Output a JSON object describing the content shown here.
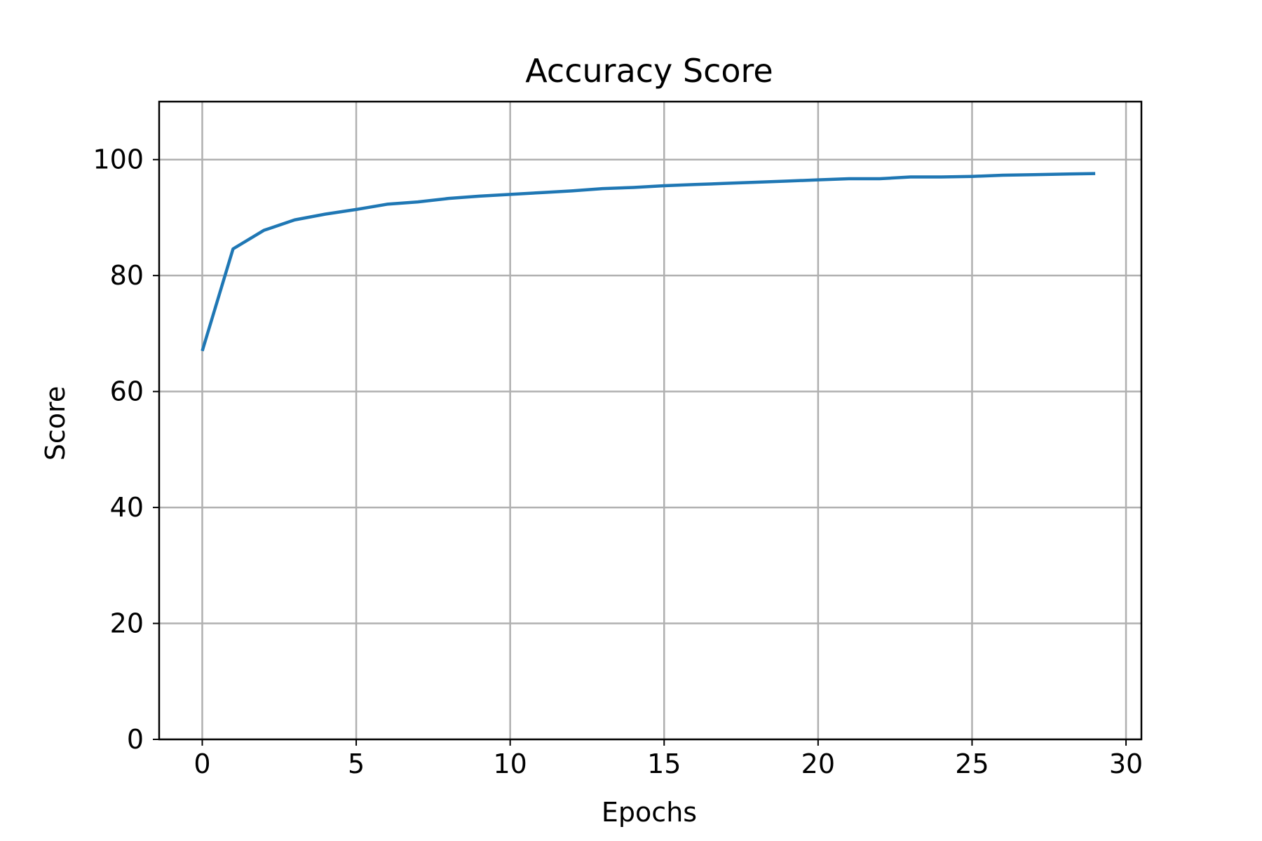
{
  "chart_data": {
    "type": "line",
    "title": "Accuracy Score",
    "xlabel": "Epochs",
    "ylabel": "Score",
    "xlim": [
      -1.4,
      30.5
    ],
    "ylim": [
      0,
      110
    ],
    "xticks": [
      0,
      5,
      10,
      15,
      20,
      25,
      30
    ],
    "yticks": [
      0,
      20,
      40,
      60,
      80,
      100
    ],
    "grid": true,
    "legend": "none",
    "series": [
      {
        "color": "#1f77b4",
        "x": [
          0,
          1,
          2,
          3,
          4,
          5,
          6,
          7,
          8,
          9,
          10,
          11,
          12,
          13,
          14,
          15,
          16,
          17,
          18,
          19,
          20,
          21,
          22,
          23,
          24,
          25,
          26,
          27,
          28,
          29
        ],
        "values": [
          67.0,
          84.6,
          87.8,
          89.6,
          90.6,
          91.4,
          92.3,
          92.7,
          93.3,
          93.7,
          94.0,
          94.3,
          94.6,
          95.0,
          95.2,
          95.5,
          95.7,
          95.9,
          96.1,
          96.3,
          96.5,
          96.7,
          96.7,
          97.0,
          97.0,
          97.1,
          97.3,
          97.4,
          97.5,
          97.6
        ]
      }
    ]
  }
}
